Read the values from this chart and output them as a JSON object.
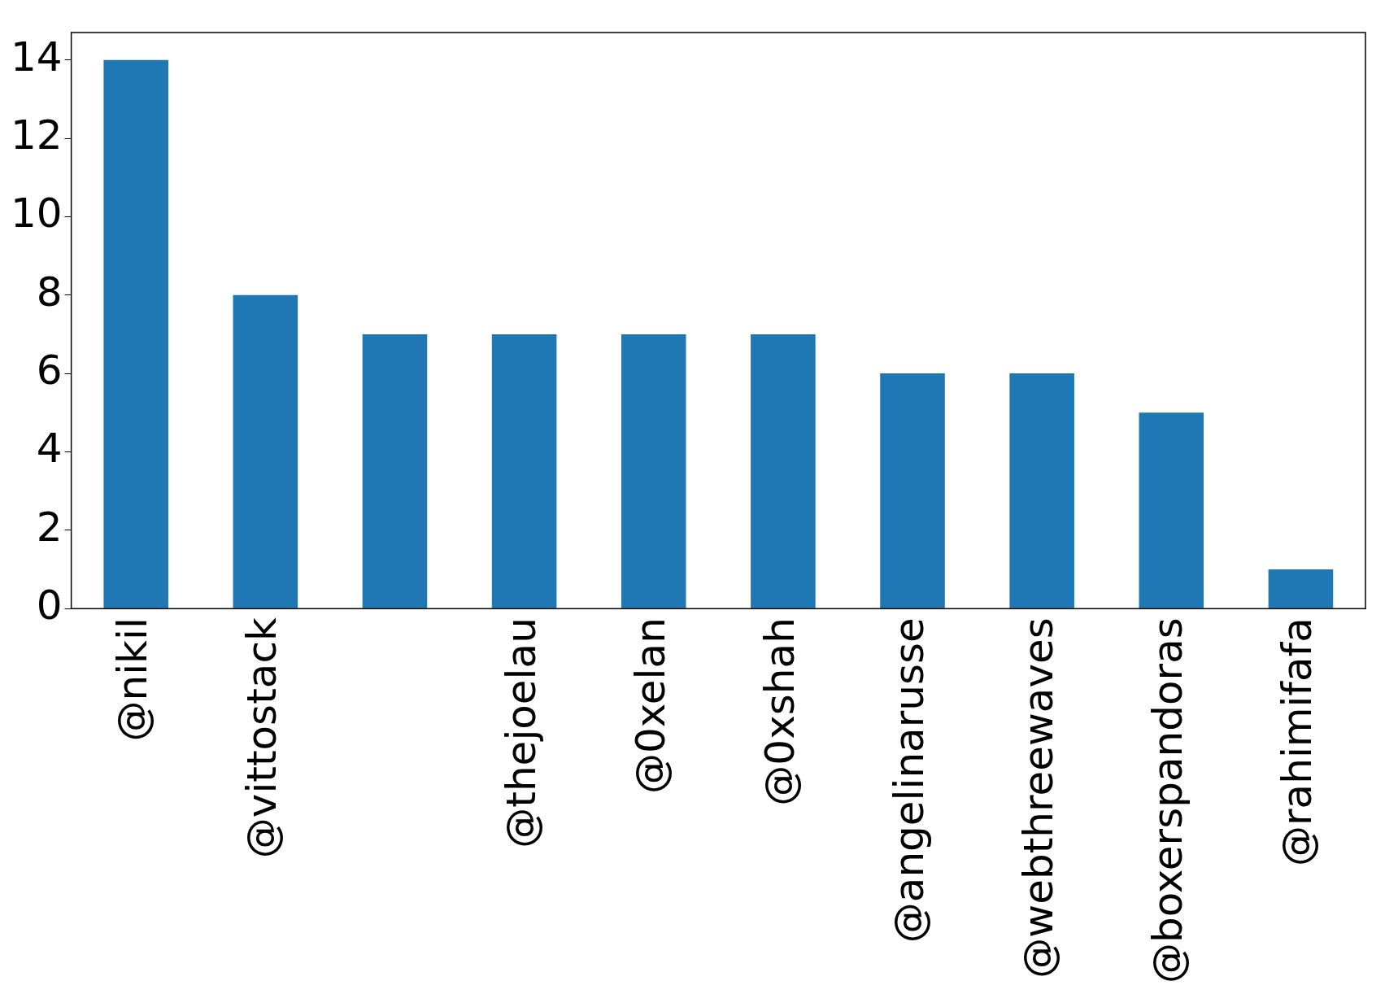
{
  "chart_data": {
    "type": "bar",
    "categories": [
      "@nikil",
      "@vittostack",
      null,
      "@thejoelau",
      "@0xelan",
      "@0xshah",
      "@angelinarusse",
      "@webthreewaves",
      "@boxerspandoras",
      "@rahimifafa"
    ],
    "values": [
      14,
      8,
      7,
      7,
      7,
      7,
      6,
      6,
      5,
      1
    ],
    "color": "#1f77b4",
    "ylim": [
      0,
      14.7
    ],
    "yticks": [
      0,
      2,
      4,
      6,
      8,
      10,
      12,
      14
    ],
    "grid": false,
    "legend": false
  }
}
